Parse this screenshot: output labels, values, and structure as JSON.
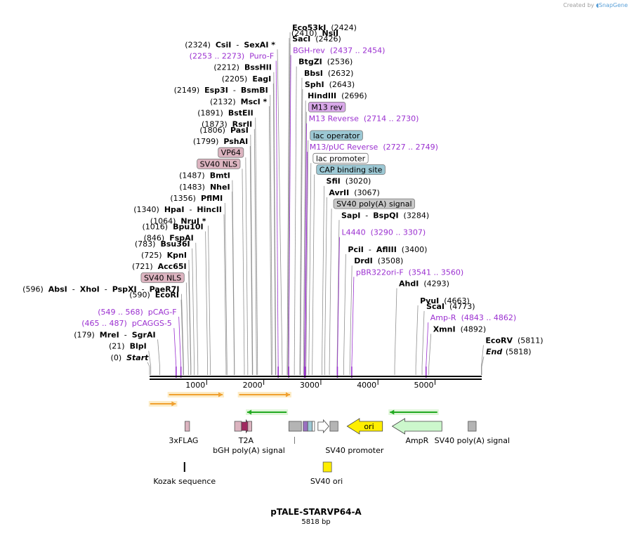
{
  "credit": {
    "prefix": "Created by",
    "brand": "SnapGene"
  },
  "plasmid": {
    "name": "pTALE-STARVP64-A",
    "length_label": "5818 bp",
    "length": 5818
  },
  "colors": {
    "primer": "#9b30d0",
    "feature_pink": "#dcb4c0",
    "feature_purple": "#d8a8e8",
    "feature_teal": "#9cc8d4",
    "feature_gray": "#c8c8c8",
    "ori_yellow": "#ffee00",
    "ampr_green": "#ccf7cc",
    "orf_orange": "#f0a030",
    "orf_green": "#22aa22"
  },
  "axis": {
    "ticks": [
      {
        "pos": 1000,
        "label": "1000"
      },
      {
        "pos": 2000,
        "label": "2000"
      },
      {
        "pos": 3000,
        "label": "3000"
      },
      {
        "pos": 4000,
        "label": "4000"
      },
      {
        "pos": 5000,
        "label": "5000"
      }
    ]
  },
  "labels": [
    {
      "kind": "enzyme",
      "pos": 2424,
      "parts": [
        [
          "name",
          "Eco53kI"
        ],
        [
          "coord",
          "(2424)"
        ]
      ]
    },
    {
      "kind": "enzyme",
      "pos": 2410,
      "parts": [
        [
          "coord",
          "(2410)"
        ],
        [
          "name",
          "NsiI"
        ]
      ]
    },
    {
      "kind": "enzyme",
      "pos": 2426,
      "parts": [
        [
          "name",
          "SacI"
        ],
        [
          "coord",
          "(2426)"
        ]
      ]
    },
    {
      "kind": "enzyme",
      "pos": 2324,
      "parts": [
        [
          "coord",
          "(2324)"
        ],
        [
          "name",
          "CsiI"
        ],
        [
          "text",
          "-"
        ],
        [
          "name",
          "SexAI *"
        ]
      ]
    },
    {
      "kind": "primer",
      "pos": 2437,
      "parts": [
        [
          "primer",
          "BGH-rev"
        ],
        [
          "primer",
          "(2437 .. 2454)"
        ]
      ]
    },
    {
      "kind": "primer",
      "pos": 2253,
      "parts": [
        [
          "primer",
          "(2253 .. 2273)"
        ],
        [
          "primer",
          "Puro-F"
        ]
      ]
    },
    {
      "kind": "enzyme",
      "pos": 2536,
      "parts": [
        [
          "name",
          "BtgZI"
        ],
        [
          "coord",
          "(2536)"
        ]
      ]
    },
    {
      "kind": "enzyme",
      "pos": 2212,
      "parts": [
        [
          "coord",
          "(2212)"
        ],
        [
          "name",
          "BssHII"
        ]
      ]
    },
    {
      "kind": "enzyme",
      "pos": 2632,
      "parts": [
        [
          "name",
          "BbsI"
        ],
        [
          "coord",
          "(2632)"
        ]
      ]
    },
    {
      "kind": "enzyme",
      "pos": 2205,
      "parts": [
        [
          "coord",
          "(2205)"
        ],
        [
          "name",
          "EagI"
        ]
      ]
    },
    {
      "kind": "enzyme",
      "pos": 2643,
      "parts": [
        [
          "name",
          "SphI"
        ],
        [
          "coord",
          "(2643)"
        ]
      ]
    },
    {
      "kind": "enzyme",
      "pos": 2149,
      "parts": [
        [
          "coord",
          "(2149)"
        ],
        [
          "name",
          "Esp3I"
        ],
        [
          "text",
          "-"
        ],
        [
          "name",
          "BsmBI"
        ]
      ]
    },
    {
      "kind": "enzyme",
      "pos": 2696,
      "parts": [
        [
          "name",
          "HindIII"
        ],
        [
          "coord",
          "(2696)"
        ]
      ]
    },
    {
      "kind": "enzyme",
      "pos": 2132,
      "parts": [
        [
          "coord",
          "(2132)"
        ],
        [
          "name",
          "MscI *"
        ]
      ]
    },
    {
      "kind": "box",
      "pos": 2710,
      "text": "M13 rev",
      "color": "#d8a8e8"
    },
    {
      "kind": "enzyme",
      "pos": 1891,
      "parts": [
        [
          "coord",
          "(1891)"
        ],
        [
          "name",
          "BstEII"
        ]
      ]
    },
    {
      "kind": "primer",
      "pos": 2714,
      "parts": [
        [
          "primer",
          "M13 Reverse"
        ],
        [
          "primer",
          "(2714 .. 2730)"
        ]
      ]
    },
    {
      "kind": "enzyme",
      "pos": 1873,
      "parts": [
        [
          "coord",
          "(1873)"
        ],
        [
          "name",
          "RsrII"
        ]
      ]
    },
    {
      "kind": "enzyme",
      "pos": 1806,
      "parts": [
        [
          "coord",
          "(1806)"
        ],
        [
          "name",
          "PasI"
        ]
      ]
    },
    {
      "kind": "box",
      "pos": 2740,
      "text": "lac operator",
      "color": "#9cc8d4"
    },
    {
      "kind": "enzyme",
      "pos": 1799,
      "parts": [
        [
          "coord",
          "(1799)"
        ],
        [
          "name",
          "PshAI"
        ]
      ]
    },
    {
      "kind": "primer",
      "pos": 2727,
      "parts": [
        [
          "primer",
          "M13/pUC Reverse"
        ],
        [
          "primer",
          "(2727 .. 2749)"
        ]
      ]
    },
    {
      "kind": "box",
      "pos": 1720,
      "text": "VP64",
      "color": "#dcb4c0"
    },
    {
      "kind": "box",
      "pos": 2790,
      "text": "lac promoter",
      "color": "#ffffff"
    },
    {
      "kind": "box",
      "pos": 1660,
      "text": "SV40 NLS",
      "color": "#dcb4c0"
    },
    {
      "kind": "box",
      "pos": 2850,
      "text": "CAP binding site",
      "color": "#9cc8d4"
    },
    {
      "kind": "enzyme",
      "pos": 1487,
      "parts": [
        [
          "coord",
          "(1487)"
        ],
        [
          "name",
          "BmtI"
        ]
      ]
    },
    {
      "kind": "enzyme",
      "pos": 3020,
      "parts": [
        [
          "name",
          "SfiI"
        ],
        [
          "coord",
          "(3020)"
        ]
      ]
    },
    {
      "kind": "enzyme",
      "pos": 1483,
      "parts": [
        [
          "coord",
          "(1483)"
        ],
        [
          "name",
          "NheI"
        ]
      ]
    },
    {
      "kind": "enzyme",
      "pos": 3067,
      "parts": [
        [
          "name",
          "AvrII"
        ],
        [
          "coord",
          "(3067)"
        ]
      ]
    },
    {
      "kind": "enzyme",
      "pos": 1356,
      "parts": [
        [
          "coord",
          "(1356)"
        ],
        [
          "name",
          "PflMI"
        ]
      ]
    },
    {
      "kind": "box",
      "pos": 3150,
      "text": "SV40 poly(A) signal",
      "color": "#c8c8c8"
    },
    {
      "kind": "enzyme",
      "pos": 1340,
      "parts": [
        [
          "coord",
          "(1340)"
        ],
        [
          "name",
          "HpaI"
        ],
        [
          "text",
          "-"
        ],
        [
          "name",
          "HincII"
        ]
      ]
    },
    {
      "kind": "enzyme",
      "pos": 3284,
      "parts": [
        [
          "name",
          "SapI"
        ],
        [
          "text",
          "-"
        ],
        [
          "name",
          "BspQI"
        ],
        [
          "coord",
          "(3284)"
        ]
      ]
    },
    {
      "kind": "enzyme",
      "pos": 1064,
      "parts": [
        [
          "coord",
          "(1064)"
        ],
        [
          "name",
          "NruI *"
        ]
      ]
    },
    {
      "kind": "enzyme",
      "pos": 1016,
      "parts": [
        [
          "coord",
          "(1016)"
        ],
        [
          "name",
          "Bpu10I"
        ]
      ]
    },
    {
      "kind": "primer",
      "pos": 3290,
      "parts": [
        [
          "primer",
          "L4440"
        ],
        [
          "primer",
          "(3290 .. 3307)"
        ]
      ]
    },
    {
      "kind": "enzyme",
      "pos": 846,
      "parts": [
        [
          "coord",
          "(846)"
        ],
        [
          "name",
          "FspAI"
        ]
      ]
    },
    {
      "kind": "enzyme",
      "pos": 783,
      "parts": [
        [
          "coord",
          "(783)"
        ],
        [
          "name",
          "Bsu36I"
        ]
      ]
    },
    {
      "kind": "enzyme",
      "pos": 3400,
      "parts": [
        [
          "name",
          "PciI"
        ],
        [
          "text",
          "-"
        ],
        [
          "name",
          "AflIII"
        ],
        [
          "coord",
          "(3400)"
        ]
      ]
    },
    {
      "kind": "enzyme",
      "pos": 725,
      "parts": [
        [
          "coord",
          "(725)"
        ],
        [
          "name",
          "KpnI"
        ]
      ]
    },
    {
      "kind": "enzyme",
      "pos": 3508,
      "parts": [
        [
          "name",
          "DrdI"
        ],
        [
          "coord",
          "(3508)"
        ]
      ]
    },
    {
      "kind": "enzyme",
      "pos": 721,
      "parts": [
        [
          "coord",
          "(721)"
        ],
        [
          "name",
          "Acc65I"
        ]
      ]
    },
    {
      "kind": "primer",
      "pos": 3541,
      "parts": [
        [
          "primer",
          "pBR322ori-F"
        ],
        [
          "primer",
          "(3541 .. 3560)"
        ]
      ]
    },
    {
      "kind": "box",
      "pos": 680,
      "text": "SV40 NLS",
      "color": "#dcb4c0"
    },
    {
      "kind": "enzyme",
      "pos": 4293,
      "parts": [
        [
          "name",
          "AhdI"
        ],
        [
          "coord",
          "(4293)"
        ]
      ]
    },
    {
      "kind": "enzyme",
      "pos": 596,
      "parts": [
        [
          "coord",
          "(596)"
        ],
        [
          "name",
          "AbsI"
        ],
        [
          "text",
          "-"
        ],
        [
          "name",
          "XhoI"
        ],
        [
          "text",
          "-"
        ],
        [
          "name",
          "PspXI"
        ],
        [
          "text",
          "-"
        ],
        [
          "name",
          "PaeR7I"
        ]
      ]
    },
    {
      "kind": "enzyme",
      "pos": 590,
      "parts": [
        [
          "coord",
          "(590)"
        ],
        [
          "name",
          "EcoRI"
        ]
      ]
    },
    {
      "kind": "enzyme",
      "pos": 4663,
      "parts": [
        [
          "name",
          "PvuI"
        ],
        [
          "coord",
          "(4663)"
        ]
      ]
    },
    {
      "kind": "enzyme",
      "pos": 4773,
      "parts": [
        [
          "name",
          "ScaI"
        ],
        [
          "coord",
          "(4773)"
        ]
      ]
    },
    {
      "kind": "primer",
      "pos": 549,
      "parts": [
        [
          "primer",
          "(549 .. 568)"
        ],
        [
          "primer",
          "pCAG-F"
        ]
      ]
    },
    {
      "kind": "primer",
      "pos": 4843,
      "parts": [
        [
          "primer",
          "Amp-R"
        ],
        [
          "primer",
          "(4843 .. 4862)"
        ]
      ]
    },
    {
      "kind": "primer",
      "pos": 465,
      "parts": [
        [
          "primer",
          "(465 .. 487)"
        ],
        [
          "primer",
          "pCAGGS-5"
        ]
      ]
    },
    {
      "kind": "enzyme",
      "pos": 4892,
      "parts": [
        [
          "name",
          "XmnI"
        ],
        [
          "coord",
          "(4892)"
        ]
      ]
    },
    {
      "kind": "enzyme",
      "pos": 179,
      "parts": [
        [
          "coord",
          "(179)"
        ],
        [
          "name",
          "MreI"
        ],
        [
          "text",
          "-"
        ],
        [
          "name",
          "SgrAI"
        ]
      ]
    },
    {
      "kind": "enzyme",
      "pos": 5811,
      "parts": [
        [
          "name",
          "EcoRV"
        ],
        [
          "coord",
          "(5811)"
        ]
      ]
    },
    {
      "kind": "enzyme",
      "pos": 21,
      "parts": [
        [
          "coord",
          "(21)"
        ],
        [
          "name",
          "BlpI"
        ]
      ]
    },
    {
      "kind": "enzyme",
      "pos": 5818,
      "parts": [
        [
          "ital",
          "End"
        ],
        [
          "coord",
          "(5818)"
        ]
      ]
    },
    {
      "kind": "enzyme",
      "pos": 0,
      "parts": [
        [
          "coord",
          "(0)"
        ],
        [
          "ital",
          "Start"
        ]
      ]
    }
  ],
  "orfs": [
    {
      "start": 340,
      "end": 1280,
      "color": "#f0a030"
    },
    {
      "start": 1570,
      "end": 2460,
      "color": "#f0a030"
    },
    {
      "start": 10,
      "end": 460,
      "color": "#f0a030"
    },
    {
      "start": 1710,
      "end": 2400,
      "color": "#22aa22",
      "reverse": true
    },
    {
      "start": 4210,
      "end": 5040,
      "color": "#22aa22",
      "reverse": true
    }
  ],
  "features": [
    {
      "label": "3xFLAG",
      "start": 620,
      "end": 700,
      "shape": "box",
      "color": "#dcb4c0"
    },
    {
      "label": "",
      "start": 1490,
      "end": 1610,
      "shape": "box",
      "color": "#dcb4c0"
    },
    {
      "label": "T2A",
      "start": 1610,
      "end": 1770,
      "shape": "arrow",
      "color": "#a02860"
    },
    {
      "label": "",
      "start": 1720,
      "end": 1790,
      "shape": "box",
      "color": "#dcb4c0"
    },
    {
      "label": "bGH poly(A) signal",
      "start": 2440,
      "end": 2660,
      "shape": "box",
      "color": "#b4b4b4"
    },
    {
      "label": "",
      "start": 2690,
      "end": 2770,
      "shape": "box",
      "color": "#9a70c0"
    },
    {
      "label": "",
      "start": 2770,
      "end": 2850,
      "shape": "box",
      "color": "#9cc8d4"
    },
    {
      "label": "",
      "start": 2850,
      "end": 2890,
      "shape": "box",
      "color": "#ffffff"
    },
    {
      "label": "SV40 promoter",
      "start": 2950,
      "end": 3140,
      "shape": "arrow",
      "color": "#ffffff"
    },
    {
      "label": "",
      "start": 3160,
      "end": 3300,
      "shape": "box",
      "color": "#b4b4b4"
    },
    {
      "label": "ori",
      "start": 3460,
      "end": 4080,
      "shape": "rarrow",
      "color": "#ffee00"
    },
    {
      "label": "AmpR",
      "start": 4250,
      "end": 5120,
      "shape": "rarrow",
      "color": "#ccf7cc"
    },
    {
      "label": "SV40 poly(A) signal",
      "start": 5580,
      "end": 5720,
      "shape": "box",
      "color": "#b4b4b4"
    }
  ],
  "lower": [
    {
      "label": "Kozak sequence",
      "start": 600,
      "end": 625,
      "shape": "bar",
      "color": "#000000"
    },
    {
      "label": "SV40 ori",
      "start": 3040,
      "end": 3160,
      "shape": "box",
      "color": "#ffee00"
    }
  ]
}
